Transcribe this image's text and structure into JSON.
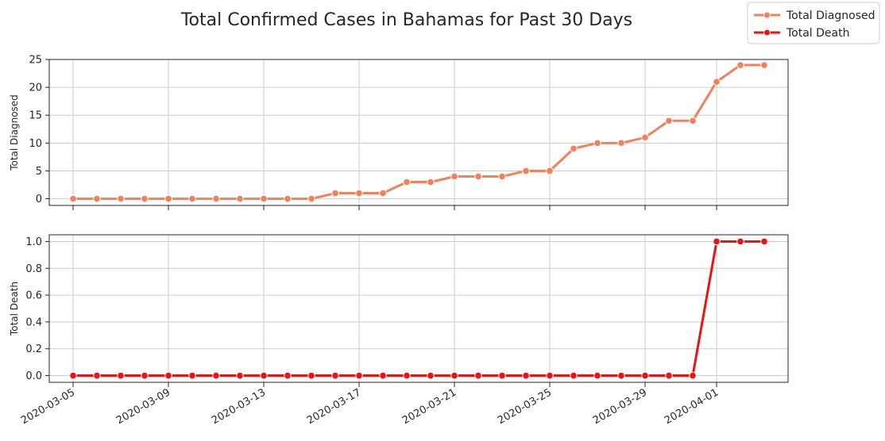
{
  "chart_data": {
    "type": "line",
    "title": "Total Confirmed Cases in Bahamas for Past 30 Days",
    "x": [
      "2020-03-05",
      "2020-03-06",
      "2020-03-07",
      "2020-03-08",
      "2020-03-09",
      "2020-03-10",
      "2020-03-11",
      "2020-03-12",
      "2020-03-13",
      "2020-03-14",
      "2020-03-15",
      "2020-03-16",
      "2020-03-17",
      "2020-03-18",
      "2020-03-19",
      "2020-03-20",
      "2020-03-21",
      "2020-03-22",
      "2020-03-23",
      "2020-03-24",
      "2020-03-25",
      "2020-03-26",
      "2020-03-27",
      "2020-03-28",
      "2020-03-29",
      "2020-03-30",
      "2020-03-31",
      "2020-04-01",
      "2020-04-02",
      "2020-04-03"
    ],
    "x_ticks": [
      "2020-03-05",
      "2020-03-09",
      "2020-03-13",
      "2020-03-17",
      "2020-03-21",
      "2020-03-25",
      "2020-03-29",
      "2020-04-01"
    ],
    "xlim": [
      "2020-03-04",
      "2020-04-04"
    ],
    "legend": {
      "placement": "top-right",
      "entries": [
        "Total Diagnosed",
        "Total Death"
      ]
    },
    "grid": true,
    "panels": [
      {
        "name": "Total Diagnosed",
        "ylabel": "Total Diagnosed",
        "ylim": [
          -1.2,
          25
        ],
        "yticks": [
          0,
          5,
          10,
          15,
          20,
          25
        ],
        "ytick_labels": [
          "0",
          "5",
          "10",
          "15",
          "20",
          "25"
        ],
        "color": "#f4805a",
        "values": [
          0,
          0,
          0,
          0,
          0,
          0,
          0,
          0,
          0,
          0,
          0,
          1,
          1,
          1,
          3,
          3,
          4,
          4,
          4,
          5,
          5,
          9,
          10,
          10,
          11,
          14,
          14,
          21,
          24,
          24
        ]
      },
      {
        "name": "Total Death",
        "ylabel": "Total Death",
        "ylim": [
          -0.05,
          1.05
        ],
        "yticks": [
          0,
          0.2,
          0.4,
          0.6,
          0.8,
          1.0
        ],
        "ytick_labels": [
          "0.0",
          "0.2",
          "0.4",
          "0.6",
          "0.8",
          "1.0"
        ],
        "color": "#ee1111",
        "values": [
          0,
          0,
          0,
          0,
          0,
          0,
          0,
          0,
          0,
          0,
          0,
          0,
          0,
          0,
          0,
          0,
          0,
          0,
          0,
          0,
          0,
          0,
          0,
          0,
          0,
          0,
          0,
          1,
          1,
          1
        ]
      }
    ]
  }
}
